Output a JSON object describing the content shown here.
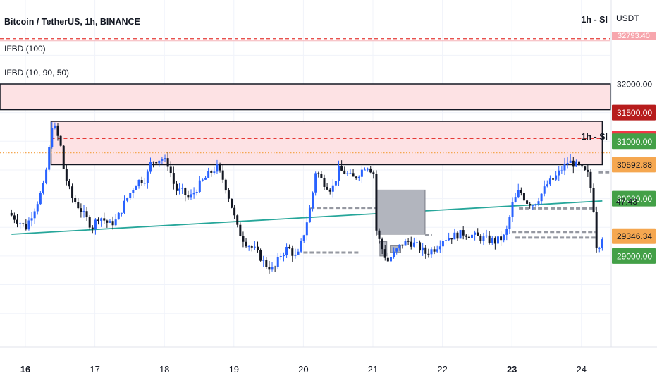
{
  "header": {
    "title": "Bitcoin / TetherUS, 1h, BINANCE",
    "indicators": [
      "IFBD (100)",
      "IFBD (10, 90, 50)"
    ]
  },
  "chart_data": {
    "type": "candlestick",
    "currency": "USDT",
    "ylim": [
      28450,
      32950
    ],
    "x_ticks": [
      {
        "label": "16",
        "day": 0,
        "bold": true
      },
      {
        "label": "17",
        "day": 1,
        "bold": false
      },
      {
        "label": "18",
        "day": 2,
        "bold": false
      },
      {
        "label": "19",
        "day": 3,
        "bold": false
      },
      {
        "label": "20",
        "day": 4,
        "bold": false
      },
      {
        "label": "21",
        "day": 5,
        "bold": false
      },
      {
        "label": "22",
        "day": 6,
        "bold": false
      },
      {
        "label": "23",
        "day": 7,
        "bold": true
      },
      {
        "label": "24",
        "day": 8,
        "bold": false
      }
    ],
    "y_ticks": [
      {
        "label": "32000.00",
        "value": 32000
      },
      {
        "label": "31500.00",
        "value": 31500,
        "bg": "#b71c1c"
      },
      {
        "label": "31048.00",
        "value": 31048,
        "bg": "#f23645"
      },
      {
        "label": "31000.00",
        "value": 31000,
        "bg": "#43a047"
      },
      {
        "label": "30592.88",
        "value": 30592.88,
        "bg": "#f5a750",
        "dark": true
      },
      {
        "label": "30000.00",
        "value": 30000,
        "bg": "#43a047"
      },
      {
        "label": "29346.34",
        "value": 29346.34,
        "bg": "#f5a750",
        "dark": true
      },
      {
        "label": "29000.00",
        "value": 29000,
        "bg": "#43a047"
      }
    ],
    "countdown": "47:43",
    "top_label": "1h - SI",
    "top_partial_label": "32793.40",
    "zone_label": "1h - SI",
    "zones": [
      {
        "low": 31550,
        "high": 32000,
        "color": "#fde2e4"
      },
      {
        "low": 30592,
        "high": 31348,
        "day_start": 0.37,
        "day_end": 8.3,
        "color": "#fde2e4"
      }
    ],
    "hlines": [
      {
        "value": 32790,
        "style": "dashed",
        "color": "#e53935"
      },
      {
        "value": 31048,
        "style": "dashed",
        "color": "#e53935",
        "day_start": 0.37,
        "day_end": 8.3
      },
      {
        "value": 30800,
        "style": "dotted",
        "color": "#f5a750"
      }
    ],
    "trendline": {
      "from": [
        -0.2,
        29380
      ],
      "to": [
        8.3,
        29960
      ],
      "color": "#26a69a"
    },
    "gray_boxes": [
      {
        "day_start": 5.05,
        "day_end": 5.75,
        "low": 29380,
        "high": 30150
      },
      {
        "day_start": 5.1,
        "day_end": 5.2,
        "low": 29000,
        "high": 29250
      },
      {
        "day_start": 5.25,
        "day_end": 5.4,
        "low": 29060,
        "high": 29180
      }
    ],
    "dashed_levels": [
      {
        "day_start": 4.0,
        "day_end": 4.8,
        "value": 29060
      },
      {
        "day_start": 4.1,
        "day_end": 5.05,
        "value": 29840
      },
      {
        "day_start": 5.75,
        "day_end": 5.85,
        "value": 29370
      },
      {
        "day_start": 7.0,
        "day_end": 8.2,
        "value": 29420
      },
      {
        "day_start": 7.05,
        "day_end": 8.2,
        "value": 29320
      },
      {
        "day_start": 7.1,
        "day_end": 8.2,
        "value": 29830
      },
      {
        "day_start": 8.25,
        "day_end": 8.4,
        "value": 30460
      }
    ],
    "price_path": [
      [
        -0.2,
        29750
      ],
      [
        0.05,
        29500
      ],
      [
        0.2,
        29900
      ],
      [
        0.3,
        30200
      ],
      [
        0.37,
        30700
      ],
      [
        0.42,
        31300
      ],
      [
        0.48,
        31200
      ],
      [
        0.55,
        30900
      ],
      [
        0.6,
        30450
      ],
      [
        0.7,
        30050
      ],
      [
        0.85,
        29780
      ],
      [
        1.0,
        29500
      ],
      [
        1.1,
        29700
      ],
      [
        1.25,
        29550
      ],
      [
        1.35,
        29620
      ],
      [
        1.5,
        30000
      ],
      [
        1.65,
        30300
      ],
      [
        1.78,
        30350
      ],
      [
        1.85,
        30650
      ],
      [
        2.0,
        30700
      ],
      [
        2.1,
        30600
      ],
      [
        2.2,
        30150
      ],
      [
        2.3,
        30120
      ],
      [
        2.4,
        30000
      ],
      [
        2.55,
        30250
      ],
      [
        2.7,
        30450
      ],
      [
        2.8,
        30550
      ],
      [
        2.9,
        30300
      ],
      [
        3.0,
        29900
      ],
      [
        3.1,
        29450
      ],
      [
        3.2,
        29250
      ],
      [
        3.35,
        29100
      ],
      [
        3.5,
        28850
      ],
      [
        3.62,
        28750
      ],
      [
        3.7,
        29000
      ],
      [
        3.82,
        29150
      ],
      [
        3.95,
        28950
      ],
      [
        4.05,
        29400
      ],
      [
        4.15,
        29900
      ],
      [
        4.22,
        30500
      ],
      [
        4.32,
        30300
      ],
      [
        4.45,
        30150
      ],
      [
        4.55,
        30500
      ],
      [
        4.65,
        30450
      ],
      [
        4.75,
        30350
      ],
      [
        4.85,
        30450
      ],
      [
        4.95,
        30600
      ],
      [
        5.05,
        30450
      ],
      [
        5.08,
        29500
      ],
      [
        5.15,
        29200
      ],
      [
        5.25,
        28900
      ],
      [
        5.35,
        29050
      ],
      [
        5.45,
        29200
      ],
      [
        5.55,
        29250
      ],
      [
        5.65,
        29200
      ],
      [
        5.8,
        29050
      ],
      [
        5.95,
        29150
      ],
      [
        6.05,
        29300
      ],
      [
        6.2,
        29350
      ],
      [
        6.35,
        29400
      ],
      [
        6.5,
        29350
      ],
      [
        6.65,
        29300
      ],
      [
        6.8,
        29250
      ],
      [
        6.95,
        29350
      ],
      [
        7.05,
        29900
      ],
      [
        7.15,
        30150
      ],
      [
        7.25,
        29950
      ],
      [
        7.35,
        29900
      ],
      [
        7.45,
        30050
      ],
      [
        7.55,
        30250
      ],
      [
        7.65,
        30350
      ],
      [
        7.75,
        30500
      ],
      [
        7.85,
        30650
      ],
      [
        7.95,
        30600
      ],
      [
        8.05,
        30500
      ],
      [
        8.15,
        30400
      ],
      [
        8.22,
        29800
      ],
      [
        8.27,
        29000
      ],
      [
        8.32,
        29346
      ]
    ]
  }
}
